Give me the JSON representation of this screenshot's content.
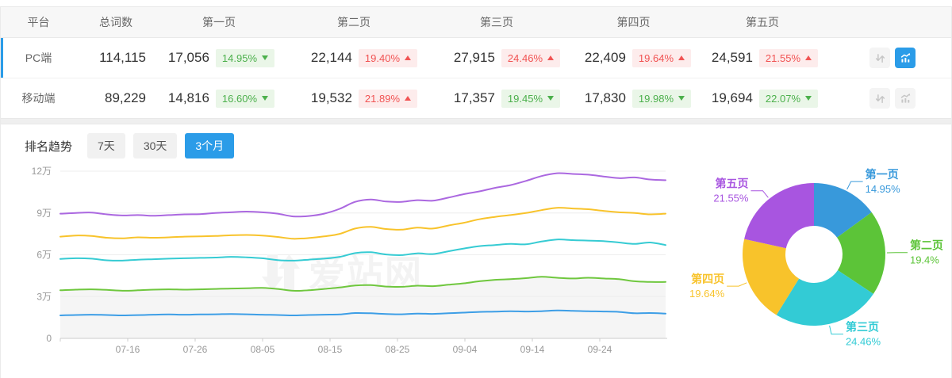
{
  "colors": {
    "accent_blue": "#2b9ce8",
    "badge_up_text": "#f15353",
    "badge_down_text": "#4cb04c",
    "axis_text": "#999999",
    "grid_line": "#eeeeee",
    "watermark": "#f3f3f3"
  },
  "table": {
    "columns": [
      "平台",
      "总词数",
      "第一页",
      "第二页",
      "第三页",
      "第四页",
      "第五页"
    ],
    "rows": [
      {
        "platform": "PC端",
        "total": "114,115",
        "selected": true,
        "chart_active": true,
        "pages": [
          {
            "count": "17,056",
            "pct": "14.95%",
            "dir": "down"
          },
          {
            "count": "22,144",
            "pct": "19.40%",
            "dir": "up"
          },
          {
            "count": "27,915",
            "pct": "24.46%",
            "dir": "up"
          },
          {
            "count": "22,409",
            "pct": "19.64%",
            "dir": "up"
          },
          {
            "count": "24,591",
            "pct": "21.55%",
            "dir": "up"
          }
        ]
      },
      {
        "platform": "移动端",
        "total": "89,229",
        "selected": false,
        "chart_active": false,
        "pages": [
          {
            "count": "14,816",
            "pct": "16.60%",
            "dir": "down"
          },
          {
            "count": "19,532",
            "pct": "21.89%",
            "dir": "up"
          },
          {
            "count": "17,357",
            "pct": "19.45%",
            "dir": "down"
          },
          {
            "count": "17,830",
            "pct": "19.98%",
            "dir": "down"
          },
          {
            "count": "19,694",
            "pct": "22.07%",
            "dir": "down"
          }
        ]
      }
    ]
  },
  "trend": {
    "label": "排名趋势",
    "tabs": [
      {
        "label": "7天",
        "active": false
      },
      {
        "label": "30天",
        "active": false
      },
      {
        "label": "3个月",
        "active": true
      }
    ]
  },
  "watermark": "爱站网",
  "chart_data": [
    {
      "type": "line",
      "title": "排名趋势 3个月",
      "unit": "万",
      "ylim": [
        0,
        12
      ],
      "grid": true,
      "legend": "none",
      "x_ticks": [
        "07-16",
        "07-26",
        "08-05",
        "08-15",
        "08-25",
        "09-04",
        "09-14",
        "09-24"
      ],
      "y_ticks": [
        {
          "label": "0",
          "value": 0
        },
        {
          "label": "3万",
          "value": 3
        },
        {
          "label": "6万",
          "value": 6
        },
        {
          "label": "9万",
          "value": 9
        },
        {
          "label": "12万",
          "value": 12
        }
      ],
      "series": [
        {
          "name": "line-1",
          "color": "#ab68e0",
          "area": false,
          "values": [
            8.95,
            9.0,
            9.03,
            8.9,
            8.82,
            8.85,
            8.8,
            8.85,
            8.9,
            8.92,
            9.0,
            9.05,
            9.1,
            9.05,
            8.95,
            8.75,
            8.78,
            8.95,
            9.3,
            9.8,
            9.97,
            9.82,
            9.8,
            9.92,
            9.88,
            10.1,
            10.35,
            10.55,
            10.8,
            11.0,
            11.3,
            11.65,
            11.85,
            11.8,
            11.75,
            11.62,
            11.5,
            11.55,
            11.4,
            11.35
          ]
        },
        {
          "name": "line-2",
          "color": "#f8c32b",
          "area": false,
          "values": [
            7.3,
            7.38,
            7.35,
            7.22,
            7.18,
            7.25,
            7.22,
            7.25,
            7.3,
            7.32,
            7.35,
            7.4,
            7.42,
            7.38,
            7.28,
            7.15,
            7.2,
            7.32,
            7.5,
            7.88,
            8.0,
            7.85,
            7.8,
            7.95,
            7.88,
            8.1,
            8.3,
            8.55,
            8.72,
            8.85,
            9.0,
            9.2,
            9.37,
            9.32,
            9.27,
            9.15,
            9.05,
            9.0,
            8.9,
            8.95
          ]
        },
        {
          "name": "line-3",
          "color": "#36cbd3",
          "area": false,
          "values": [
            5.7,
            5.75,
            5.72,
            5.6,
            5.58,
            5.65,
            5.68,
            5.72,
            5.75,
            5.78,
            5.8,
            5.85,
            5.82,
            5.75,
            5.62,
            5.58,
            5.65,
            5.72,
            5.85,
            6.12,
            6.18,
            6.02,
            5.98,
            6.1,
            6.05,
            6.25,
            6.45,
            6.62,
            6.7,
            6.78,
            6.75,
            6.95,
            7.1,
            7.05,
            7.02,
            6.98,
            6.88,
            6.78,
            6.88,
            6.7
          ]
        },
        {
          "name": "line-4",
          "color": "#6fc73e",
          "area": true,
          "values": [
            3.45,
            3.5,
            3.52,
            3.48,
            3.42,
            3.45,
            3.5,
            3.52,
            3.5,
            3.52,
            3.55,
            3.58,
            3.6,
            3.62,
            3.55,
            3.42,
            3.45,
            3.55,
            3.65,
            3.8,
            3.82,
            3.72,
            3.7,
            3.78,
            3.75,
            3.85,
            3.95,
            4.1,
            4.2,
            4.25,
            4.32,
            4.42,
            4.35,
            4.3,
            4.35,
            4.3,
            4.25,
            4.1,
            4.05,
            4.05
          ]
        },
        {
          "name": "line-5",
          "color": "#3d9ee6",
          "area": false,
          "values": [
            1.65,
            1.68,
            1.7,
            1.68,
            1.65,
            1.67,
            1.7,
            1.72,
            1.7,
            1.72,
            1.73,
            1.75,
            1.73,
            1.7,
            1.68,
            1.65,
            1.68,
            1.7,
            1.72,
            1.82,
            1.8,
            1.75,
            1.73,
            1.78,
            1.76,
            1.8,
            1.85,
            1.9,
            1.92,
            1.95,
            1.93,
            1.95,
            2.0,
            1.98,
            1.95,
            1.93,
            1.9,
            1.8,
            1.82,
            1.78
          ]
        }
      ]
    },
    {
      "type": "pie",
      "inner_radius_ratio": 0.4,
      "legend": "callout-labels",
      "segments": [
        {
          "label": "第一页",
          "value": 14.95,
          "display": "14.95%",
          "color": "#3899db"
        },
        {
          "label": "第二页",
          "value": 19.4,
          "display": "19.4%",
          "color": "#5cc438"
        },
        {
          "label": "第三页",
          "value": 24.46,
          "display": "24.46%",
          "color": "#33cbd5"
        },
        {
          "label": "第四页",
          "value": 19.64,
          "display": "19.64%",
          "color": "#f8c32b"
        },
        {
          "label": "第五页",
          "value": 21.55,
          "display": "21.55%",
          "color": "#a855e0"
        }
      ]
    }
  ]
}
